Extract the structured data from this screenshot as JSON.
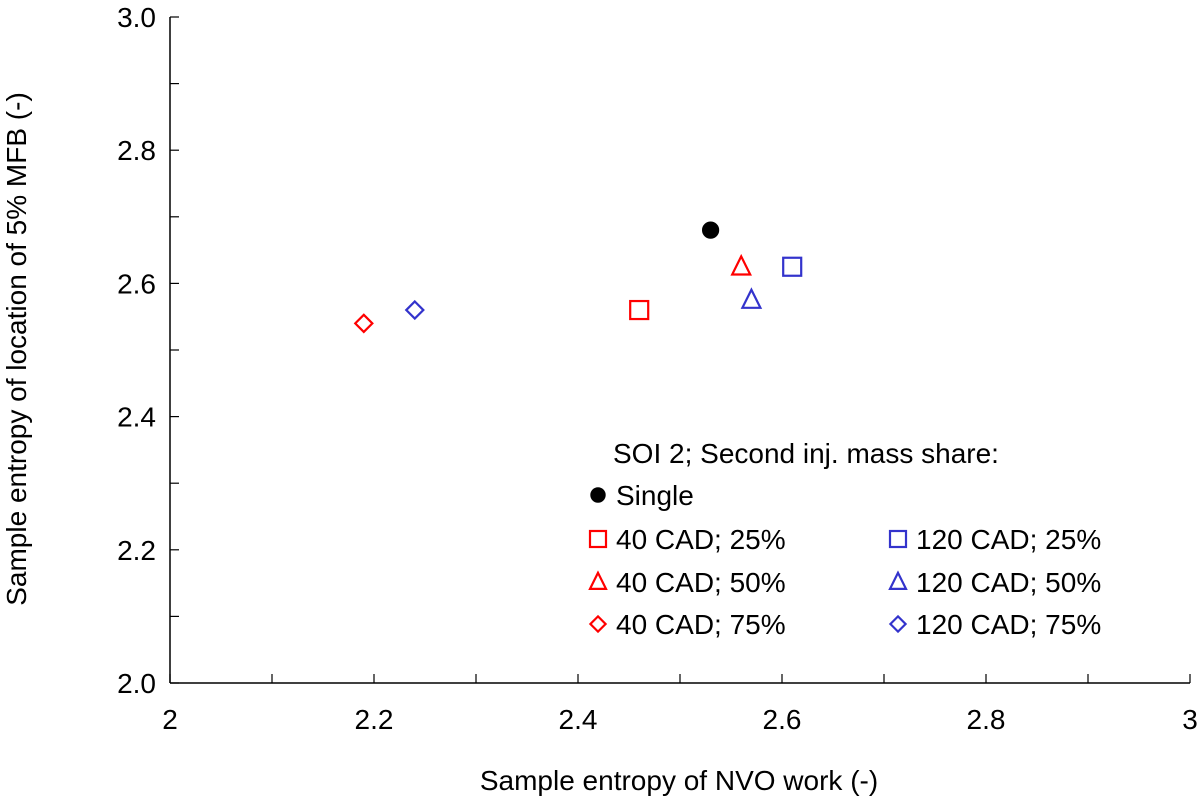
{
  "chart_data": {
    "type": "scatter",
    "title": "",
    "xlabel": "Sample entropy of NVO work (-)",
    "ylabel": "Sample entropy of location of 5% MFB (-)",
    "xlim": [
      2,
      3
    ],
    "ylim": [
      2.0,
      3.0
    ],
    "x_ticks": [
      "2",
      "2.2",
      "2.4",
      "2.6",
      "2.8",
      "3"
    ],
    "y_ticks": [
      "2.0",
      "2.2",
      "2.4",
      "2.6",
      "2.8",
      "3.0"
    ],
    "grid": false,
    "legend": {
      "placement": "bottom-right",
      "title": "SOI 2; Second inj. mass share:"
    },
    "series": [
      {
        "name": "Single",
        "marker": "circle-filled",
        "color": "#000000",
        "points": [
          {
            "x": 2.53,
            "y": 2.68
          }
        ]
      },
      {
        "name": "40 CAD; 25%",
        "marker": "square",
        "color": "#ff0000",
        "points": [
          {
            "x": 2.46,
            "y": 2.56
          }
        ]
      },
      {
        "name": "40 CAD; 50%",
        "marker": "triangle",
        "color": "#ff0000",
        "points": [
          {
            "x": 2.56,
            "y": 2.625
          }
        ]
      },
      {
        "name": "40 CAD; 75%",
        "marker": "diamond",
        "color": "#ff0000",
        "points": [
          {
            "x": 2.19,
            "y": 2.54
          }
        ]
      },
      {
        "name": "120 CAD; 25%",
        "marker": "square",
        "color": "#3333cc",
        "points": [
          {
            "x": 2.61,
            "y": 2.625
          }
        ]
      },
      {
        "name": "120 CAD; 50%",
        "marker": "triangle",
        "color": "#3333cc",
        "points": [
          {
            "x": 2.57,
            "y": 2.575
          }
        ]
      },
      {
        "name": "120 CAD; 75%",
        "marker": "diamond",
        "color": "#3333cc",
        "points": [
          {
            "x": 2.24,
            "y": 2.56
          }
        ]
      }
    ]
  }
}
